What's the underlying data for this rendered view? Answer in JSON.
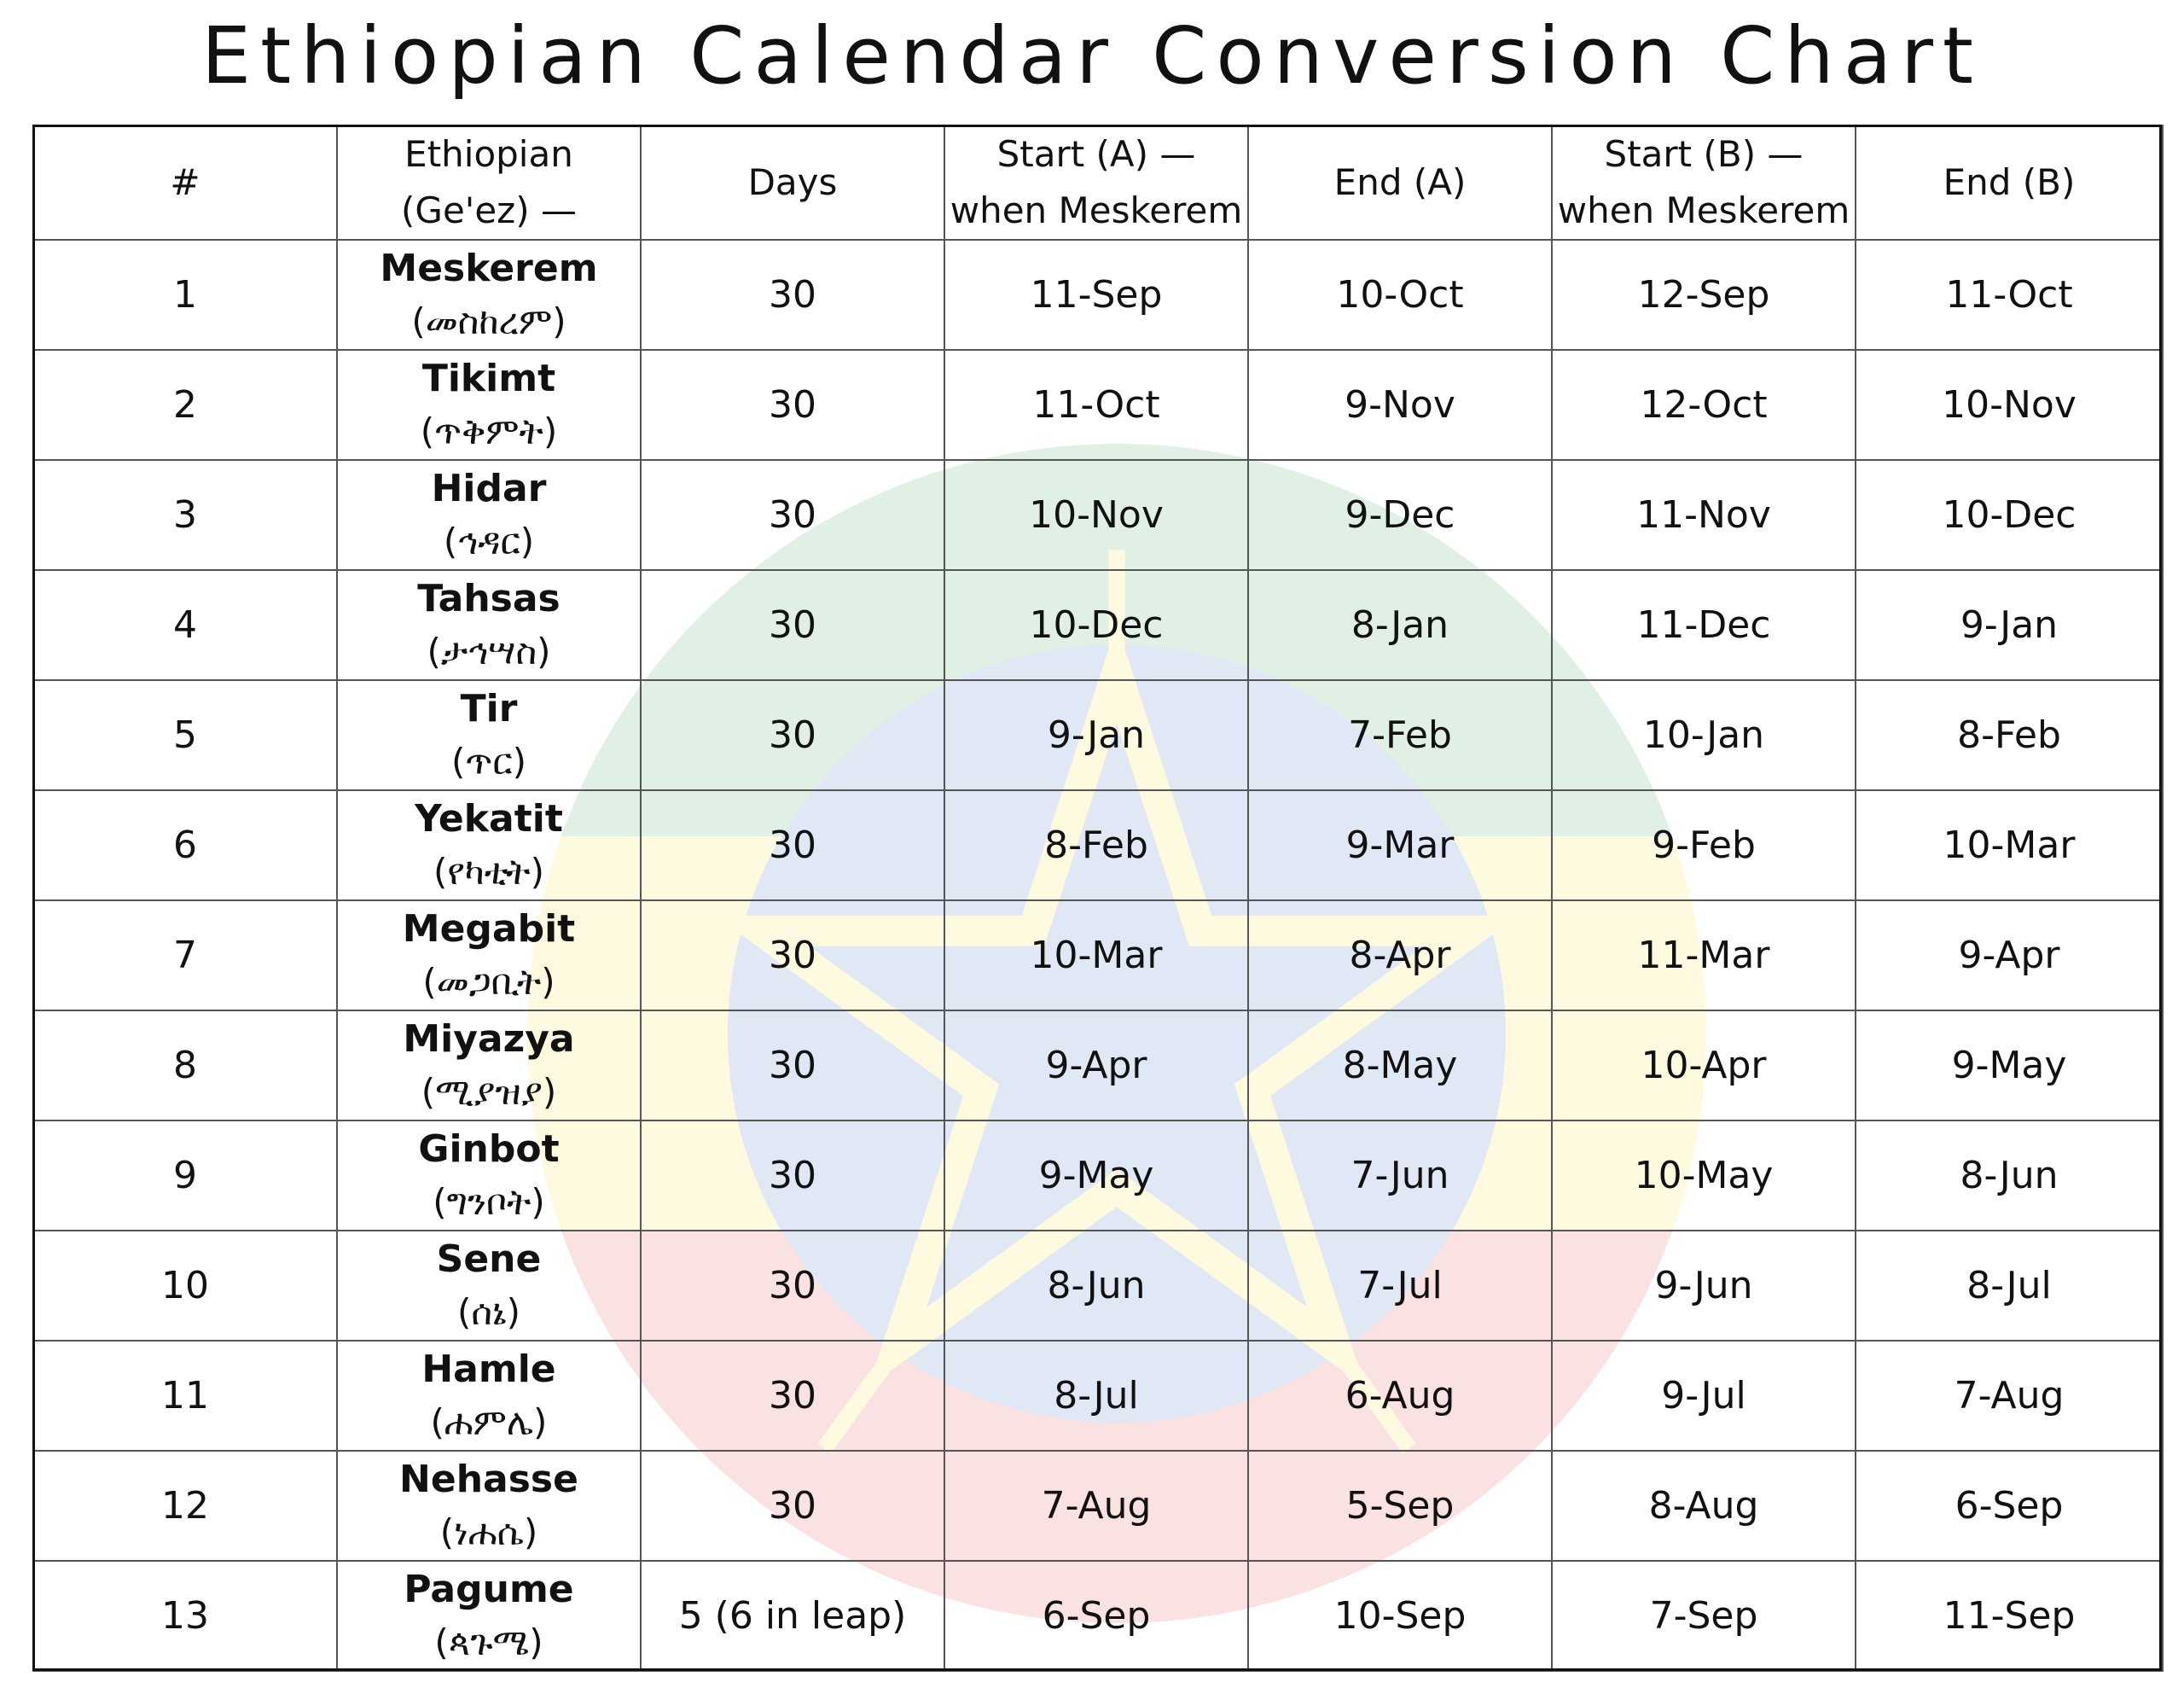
{
  "title": "Ethiopian Calendar Conversion Chart",
  "colors": {
    "flag_green": "#078930",
    "flag_yellow": "#FCDD09",
    "flag_red": "#DA121A",
    "emblem_blue": "#0F47AF",
    "grid": "#555555"
  },
  "headers": {
    "num": "#",
    "ethiopian_line1": "Ethiopian",
    "ethiopian_line2": "(Ge'ez) —",
    "days": "Days",
    "start_a_line1": "Start (A) —",
    "start_a_line2": "when Meskerem",
    "end_a": "End (A)",
    "start_b_line1": "Start (B) —",
    "start_b_line2": "when Meskerem",
    "end_b": "End (B)"
  },
  "rows": [
    {
      "num": "1",
      "name": "Meskerem",
      "geez": "(መስከረም)",
      "days": "30",
      "start_a": "11-Sep",
      "end_a": "10-Oct",
      "start_b": "12-Sep",
      "end_b": "11-Oct"
    },
    {
      "num": "2",
      "name": "Tikimt",
      "geez": "(ጥቅምት)",
      "days": "30",
      "start_a": "11-Oct",
      "end_a": "9-Nov",
      "start_b": "12-Oct",
      "end_b": "10-Nov"
    },
    {
      "num": "3",
      "name": "Hidar",
      "geez": "(ኅዳር)",
      "days": "30",
      "start_a": "10-Nov",
      "end_a": "9-Dec",
      "start_b": "11-Nov",
      "end_b": "10-Dec"
    },
    {
      "num": "4",
      "name": "Tahsas",
      "geez": "(ታኅሣስ)",
      "days": "30",
      "start_a": "10-Dec",
      "end_a": "8-Jan",
      "start_b": "11-Dec",
      "end_b": "9-Jan"
    },
    {
      "num": "5",
      "name": "Tir",
      "geez": "(ጥር)",
      "days": "30",
      "start_a": "9-Jan",
      "end_a": "7-Feb",
      "start_b": "10-Jan",
      "end_b": "8-Feb"
    },
    {
      "num": "6",
      "name": "Yekatit",
      "geez": "(የካቲት)",
      "days": "30",
      "start_a": "8-Feb",
      "end_a": "9-Mar",
      "start_b": "9-Feb",
      "end_b": "10-Mar"
    },
    {
      "num": "7",
      "name": "Megabit",
      "geez": "(መጋቢት)",
      "days": "30",
      "start_a": "10-Mar",
      "end_a": "8-Apr",
      "start_b": "11-Mar",
      "end_b": "9-Apr"
    },
    {
      "num": "8",
      "name": "Miyazya",
      "geez": "(ሚያዝያ)",
      "days": "30",
      "start_a": "9-Apr",
      "end_a": "8-May",
      "start_b": "10-Apr",
      "end_b": "9-May"
    },
    {
      "num": "9",
      "name": "Ginbot",
      "geez": "(ግንቦት)",
      "days": "30",
      "start_a": "9-May",
      "end_a": "7-Jun",
      "start_b": "10-May",
      "end_b": "8-Jun"
    },
    {
      "num": "10",
      "name": "Sene",
      "geez": "(ሰኔ)",
      "days": "30",
      "start_a": "8-Jun",
      "end_a": "7-Jul",
      "start_b": "9-Jun",
      "end_b": "8-Jul"
    },
    {
      "num": "11",
      "name": "Hamle",
      "geez": "(ሐምሌ)",
      "days": "30",
      "start_a": "8-Jul",
      "end_a": "6-Aug",
      "start_b": "9-Jul",
      "end_b": "7-Aug"
    },
    {
      "num": "12",
      "name": "Nehasse",
      "geez": "(ነሐሴ)",
      "days": "30",
      "start_a": "7-Aug",
      "end_a": "5-Sep",
      "start_b": "8-Aug",
      "end_b": "6-Sep"
    },
    {
      "num": "13",
      "name": "Pagume",
      "geez": "(ጳጉሜ)",
      "days": "5 (6 in leap)",
      "start_a": "6-Sep",
      "end_a": "10-Sep",
      "start_b": "7-Sep",
      "end_b": "11-Sep"
    }
  ]
}
